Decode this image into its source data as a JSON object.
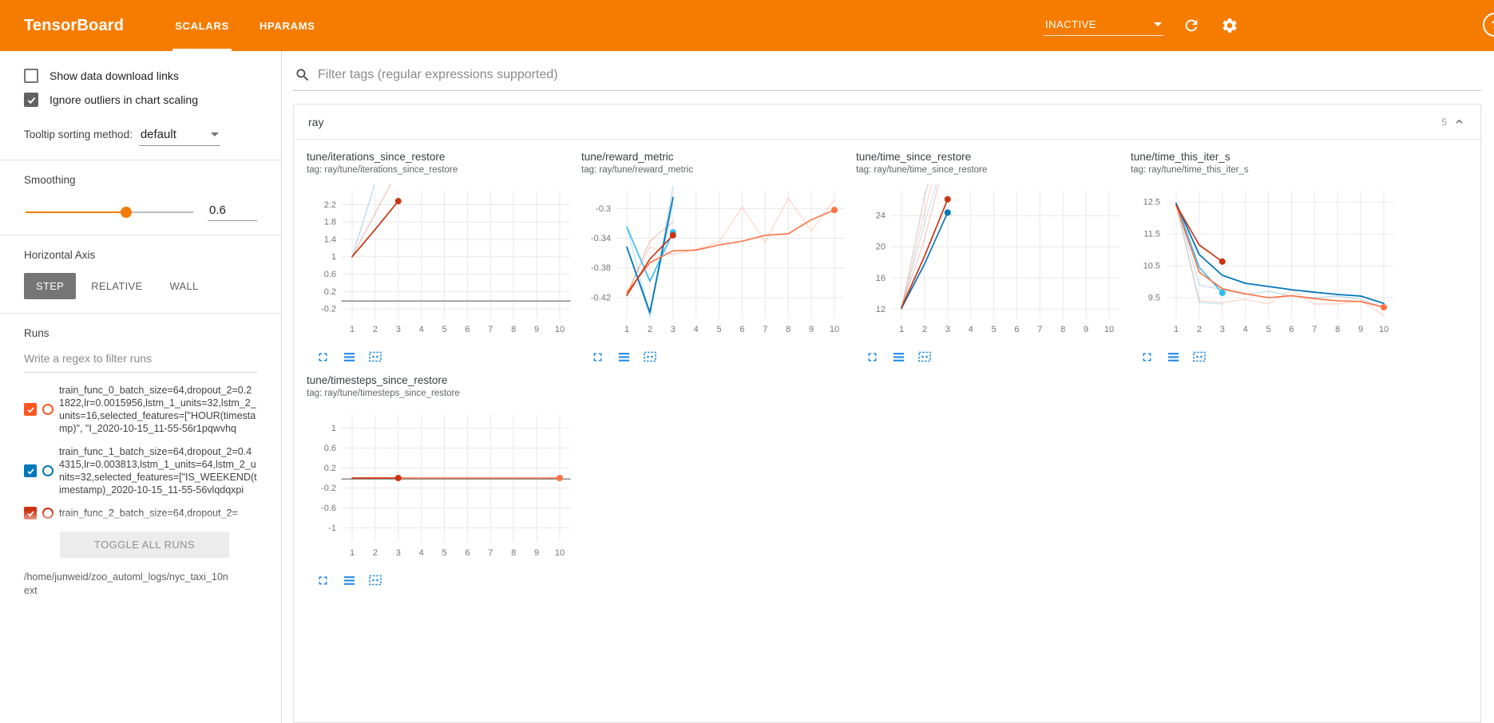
{
  "header": {
    "logo": "TensorBoard",
    "tabs": [
      {
        "label": "SCALARS",
        "active": true
      },
      {
        "label": "HPARAMS",
        "active": false
      }
    ],
    "status": {
      "label": "INACTIVE"
    },
    "accent_color": "#f57c00"
  },
  "sidebar": {
    "show_download_links": {
      "label": "Show data download links",
      "checked": false
    },
    "ignore_outliers": {
      "label": "Ignore outliers in chart scaling",
      "checked": true
    },
    "tooltip_sorting": {
      "label": "Tooltip sorting method:",
      "value": "default"
    },
    "smoothing": {
      "label": "Smoothing",
      "value": "0.6"
    },
    "horizontal_axis": {
      "label": "Horizontal Axis",
      "options": [
        "STEP",
        "RELATIVE",
        "WALL"
      ],
      "selected": "STEP"
    },
    "runs": {
      "label": "Runs",
      "filter_placeholder": "Write a regex to filter runs",
      "items": [
        {
          "name": "train_func_0_batch_size=64,dropout_2=0.21822,lr=0.0015956,lstm_1_units=32,lstm_2_units=16,selected_features=[\"HOUR(timestamp)\", \"I_2020-10-15_11-55-56r1pqwvhq",
          "color": "#ff5722",
          "checked": true
        },
        {
          "name": "train_func_1_batch_size=64,dropout_2=0.44315,lr=0.003813,lstm_1_units=64,lstm_2_units=32,selected_features=[\"IS_WEEKEND(timestamp)_2020-10-15_11-55-56vlqdqxpi",
          "color": "#0077bb",
          "checked": true
        },
        {
          "name": "train_func_2_batch_size=64,dropout_2=",
          "color": "#cc3311",
          "checked": true
        }
      ],
      "toggle_all_label": "TOGGLE ALL RUNS",
      "log_dir": "/home/junweid/zoo_automl_logs/nyc_taxi_10next"
    }
  },
  "main": {
    "filter_placeholder": "Filter tags (regular expressions supported)",
    "card": {
      "title": "ray",
      "count": "5"
    }
  },
  "chart_data": [
    {
      "type": "line",
      "title": "tune/iterations_since_restore",
      "tag": "tag: ray/tune/iterations_since_restore",
      "xlim": [
        0.55,
        10.45
      ],
      "ylim": [
        -0.42,
        2.52
      ],
      "xticks": [
        1,
        2,
        3,
        4,
        5,
        6,
        7,
        8,
        9,
        10
      ],
      "yticks": [
        -0.2,
        0.2,
        0.6,
        1,
        1.4,
        1.8,
        2.2
      ],
      "grid": true,
      "series": [
        {
          "name": "run_4",
          "color": "#8a8a8a",
          "width": 1.5,
          "opacity": 1,
          "points": [
            [
              0.55,
              -0.02
            ],
            [
              10.45,
              -0.02
            ]
          ],
          "end_dot": false
        },
        {
          "name": "run_1_raw",
          "color": "#0077bb",
          "width": 1.2,
          "opacity": 0.3,
          "points": [
            [
              1,
              1
            ],
            [
              2,
              2.7
            ]
          ],
          "end_dot": false
        },
        {
          "name": "run_2_raw",
          "color": "#cc3311",
          "width": 1.2,
          "opacity": 0.3,
          "points": [
            [
              1,
              1
            ],
            [
              2,
              2
            ],
            [
              3,
              3
            ]
          ],
          "end_dot": false
        },
        {
          "name": "run_2",
          "color": "#cc3311",
          "width": 1.7,
          "opacity": 1,
          "points": [
            [
              1,
              1
            ],
            [
              2,
              1.63
            ],
            [
              3,
              2.28
            ]
          ],
          "end_dot": true
        }
      ]
    },
    {
      "type": "line",
      "title": "tune/reward_metric",
      "tag": "tag: ray/tune/reward_metric",
      "xlim": [
        0.55,
        10.45
      ],
      "ylim": [
        -0.448,
        -0.276
      ],
      "xticks": [
        1,
        2,
        3,
        4,
        5,
        6,
        7,
        8,
        9,
        10
      ],
      "yticks": [
        -0.42,
        -0.38,
        -0.34,
        -0.3
      ],
      "grid": true,
      "series": [
        {
          "name": "run_3_raw",
          "color": "#33bbee",
          "width": 1.2,
          "opacity": 0.35,
          "points": [
            [
              1,
              -0.325
            ],
            [
              2,
              -0.443
            ],
            [
              3,
              -0.294
            ]
          ],
          "end_dot": false
        },
        {
          "name": "run_0_raw",
          "color": "#ff7043",
          "width": 1.2,
          "opacity": 0.3,
          "points": [
            [
              1,
              -0.413
            ],
            [
              2,
              -0.352
            ],
            [
              3,
              -0.362
            ],
            [
              4,
              -0.355
            ],
            [
              5,
              -0.345
            ],
            [
              6,
              -0.298
            ],
            [
              7,
              -0.345
            ],
            [
              8,
              -0.286
            ],
            [
              9,
              -0.33
            ],
            [
              10,
              -0.288
            ]
          ],
          "end_dot": false
        },
        {
          "name": "run_2_raw",
          "color": "#cc3311",
          "width": 1.2,
          "opacity": 0.3,
          "points": [
            [
              1,
              -0.417
            ],
            [
              2,
              -0.344
            ],
            [
              3,
              -0.318
            ]
          ],
          "end_dot": false
        },
        {
          "name": "run_1_raw",
          "color": "#0077bb",
          "width": 1.2,
          "opacity": 0.25,
          "points": [
            [
              1,
              -0.352
            ],
            [
              2,
              -0.445
            ],
            [
              3,
              -0.27
            ]
          ],
          "end_dot": false
        },
        {
          "name": "run_3",
          "color": "#33bbee",
          "width": 1.6,
          "opacity": 1,
          "points": [
            [
              1,
              -0.325
            ],
            [
              2,
              -0.398
            ],
            [
              3,
              -0.332
            ]
          ],
          "end_dot": true
        },
        {
          "name": "run_1",
          "color": "#0077bb",
          "width": 1.8,
          "opacity": 1,
          "points": [
            [
              1,
              -0.352
            ],
            [
              2,
              -0.44
            ],
            [
              3,
              -0.285
            ]
          ],
          "end_dot": false
        },
        {
          "name": "run_0",
          "color": "#ff7043",
          "width": 1.6,
          "opacity": 1,
          "points": [
            [
              1,
              -0.413
            ],
            [
              2,
              -0.373
            ],
            [
              3,
              -0.357
            ],
            [
              4,
              -0.356
            ],
            [
              5,
              -0.349
            ],
            [
              6,
              -0.344
            ],
            [
              7,
              -0.336
            ],
            [
              8,
              -0.334
            ],
            [
              9,
              -0.315
            ],
            [
              10,
              -0.302
            ]
          ],
          "end_dot": true
        },
        {
          "name": "run_2",
          "color": "#cc3311",
          "width": 1.6,
          "opacity": 1,
          "points": [
            [
              1,
              -0.417
            ],
            [
              2,
              -0.368
            ],
            [
              3,
              -0.336
            ]
          ],
          "end_dot": true
        }
      ]
    },
    {
      "type": "line",
      "title": "tune/time_since_restore",
      "tag": "tag: ray/tune/time_since_restore",
      "xlim": [
        0.55,
        10.45
      ],
      "ylim": [
        10.8,
        27.2
      ],
      "xticks": [
        1,
        2,
        3,
        4,
        5,
        6,
        7,
        8,
        9,
        10
      ],
      "yticks": [
        12,
        16,
        20,
        24
      ],
      "grid": true,
      "series": [
        {
          "name": "run_4_raw",
          "color": "#bbbbbb",
          "width": 1.3,
          "opacity": 0.6,
          "points": [
            [
              1,
              12
            ],
            [
              2,
              26.5
            ],
            [
              2.15,
              28
            ]
          ],
          "end_dot": false
        },
        {
          "name": "run_1_raw",
          "color": "#0077bb",
          "width": 1.2,
          "opacity": 0.2,
          "points": [
            [
              1,
              12.1
            ],
            [
              2,
              23
            ],
            [
              2.5,
              28
            ]
          ],
          "end_dot": false
        },
        {
          "name": "run_0_raw",
          "color": "#ff7043",
          "width": 1.2,
          "opacity": 0.3,
          "points": [
            [
              1,
              11.9
            ],
            [
              2,
              24.5
            ],
            [
              2.3,
              28
            ]
          ],
          "end_dot": false
        },
        {
          "name": "run_2_raw",
          "color": "#cc3311",
          "width": 1.2,
          "opacity": 0.25,
          "points": [
            [
              1,
              12.2
            ],
            [
              2,
              21
            ],
            [
              2.6,
              28
            ]
          ],
          "end_dot": false
        },
        {
          "name": "run_1",
          "color": "#0077bb",
          "width": 1.7,
          "opacity": 1,
          "points": [
            [
              1,
              12.1
            ],
            [
              2,
              17.8
            ],
            [
              3,
              24.4
            ]
          ],
          "end_dot": true
        },
        {
          "name": "run_2",
          "color": "#cc3311",
          "width": 1.7,
          "opacity": 1,
          "points": [
            [
              1,
              12.2
            ],
            [
              2,
              18.8
            ],
            [
              3,
              26.1
            ]
          ],
          "end_dot": true
        }
      ]
    },
    {
      "type": "line",
      "title": "tune/time_this_iter_s",
      "tag": "tag: ray/tune/time_this_iter_s",
      "xlim": [
        0.55,
        10.45
      ],
      "ylim": [
        8.85,
        12.85
      ],
      "xticks": [
        1,
        2,
        3,
        4,
        5,
        6,
        7,
        8,
        9,
        10
      ],
      "yticks": [
        9.5,
        10.5,
        11.5,
        12.5
      ],
      "grid": true,
      "series": [
        {
          "name": "run_3_raw",
          "color": "#33bbee",
          "width": 1.2,
          "opacity": 0.35,
          "points": [
            [
              1,
              12.45
            ],
            [
              2,
              9.35
            ],
            [
              3,
              9.3
            ]
          ],
          "end_dot": false
        },
        {
          "name": "run_0_raw",
          "color": "#ff7043",
          "width": 1.2,
          "opacity": 0.3,
          "points": [
            [
              1,
              12.4
            ],
            [
              2,
              9.4
            ],
            [
              3,
              9.35
            ],
            [
              4,
              9.45
            ],
            [
              5,
              9.3
            ],
            [
              6,
              9.75
            ],
            [
              7,
              9.3
            ],
            [
              8,
              9.3
            ],
            [
              9,
              9.4
            ],
            [
              10,
              8.95
            ]
          ],
          "end_dot": false
        },
        {
          "name": "run_1_raw",
          "color": "#0077bb",
          "width": 1.2,
          "opacity": 0.25,
          "points": [
            [
              1,
              12.45
            ],
            [
              2,
              9.9
            ],
            [
              3,
              9.75
            ],
            [
              4,
              9.6
            ],
            [
              5,
              9.7
            ],
            [
              6,
              9.55
            ],
            [
              7,
              9.5
            ],
            [
              8,
              9.55
            ],
            [
              9,
              9.45
            ],
            [
              10,
              9.2
            ]
          ],
          "end_dot": false
        },
        {
          "name": "run_3",
          "color": "#33bbee",
          "width": 1.6,
          "opacity": 1,
          "points": [
            [
              1,
              12.45
            ],
            [
              2,
              10.45
            ],
            [
              3,
              9.65
            ]
          ],
          "end_dot": true
        },
        {
          "name": "run_1",
          "color": "#0077bb",
          "width": 1.8,
          "opacity": 1,
          "points": [
            [
              1,
              12.45
            ],
            [
              2,
              10.85
            ],
            [
              3,
              10.2
            ],
            [
              4,
              9.95
            ],
            [
              5,
              9.85
            ],
            [
              6,
              9.75
            ],
            [
              7,
              9.67
            ],
            [
              8,
              9.6
            ],
            [
              9,
              9.55
            ],
            [
              10,
              9.32
            ]
          ],
          "end_dot": false
        },
        {
          "name": "run_0",
          "color": "#ff7043",
          "width": 1.6,
          "opacity": 1,
          "points": [
            [
              1,
              12.4
            ],
            [
              2,
              10.3
            ],
            [
              3,
              9.78
            ],
            [
              4,
              9.62
            ],
            [
              5,
              9.5
            ],
            [
              6,
              9.56
            ],
            [
              7,
              9.47
            ],
            [
              8,
              9.4
            ],
            [
              9,
              9.38
            ],
            [
              10,
              9.2
            ]
          ],
          "end_dot": true
        },
        {
          "name": "run_2",
          "color": "#cc3311",
          "width": 1.7,
          "opacity": 1,
          "points": [
            [
              1,
              12.4
            ],
            [
              2,
              11.15
            ],
            [
              3,
              10.63
            ]
          ],
          "end_dot": true
        }
      ]
    },
    {
      "type": "line",
      "title": "tune/timesteps_since_restore",
      "tag": "tag: ray/tune/timesteps_since_restore",
      "xlim": [
        0.55,
        10.45
      ],
      "ylim": [
        -1.28,
        1.28
      ],
      "xticks": [
        1,
        2,
        3,
        4,
        5,
        6,
        7,
        8,
        9,
        10
      ],
      "yticks": [
        -1,
        -0.6,
        -0.2,
        0.2,
        0.6,
        1
      ],
      "grid": true,
      "series": [
        {
          "name": "run_4",
          "color": "#8a8a8a",
          "width": 1.5,
          "opacity": 1,
          "points": [
            [
              0.55,
              -0.02
            ],
            [
              10.45,
              -0.02
            ]
          ],
          "end_dot": false
        },
        {
          "name": "run_0",
          "color": "#ff7043",
          "width": 1.6,
          "opacity": 1,
          "points": [
            [
              1,
              0
            ],
            [
              2,
              0
            ],
            [
              3,
              0
            ],
            [
              4,
              0
            ],
            [
              5,
              0
            ],
            [
              6,
              0
            ],
            [
              7,
              0
            ],
            [
              8,
              0
            ],
            [
              9,
              0
            ],
            [
              10,
              0
            ]
          ],
          "end_dot": true
        },
        {
          "name": "run_2",
          "color": "#cc3311",
          "width": 1.6,
          "opacity": 1,
          "points": [
            [
              1,
              0
            ],
            [
              2,
              0
            ],
            [
              3,
              0
            ]
          ],
          "end_dot": true
        }
      ]
    }
  ]
}
